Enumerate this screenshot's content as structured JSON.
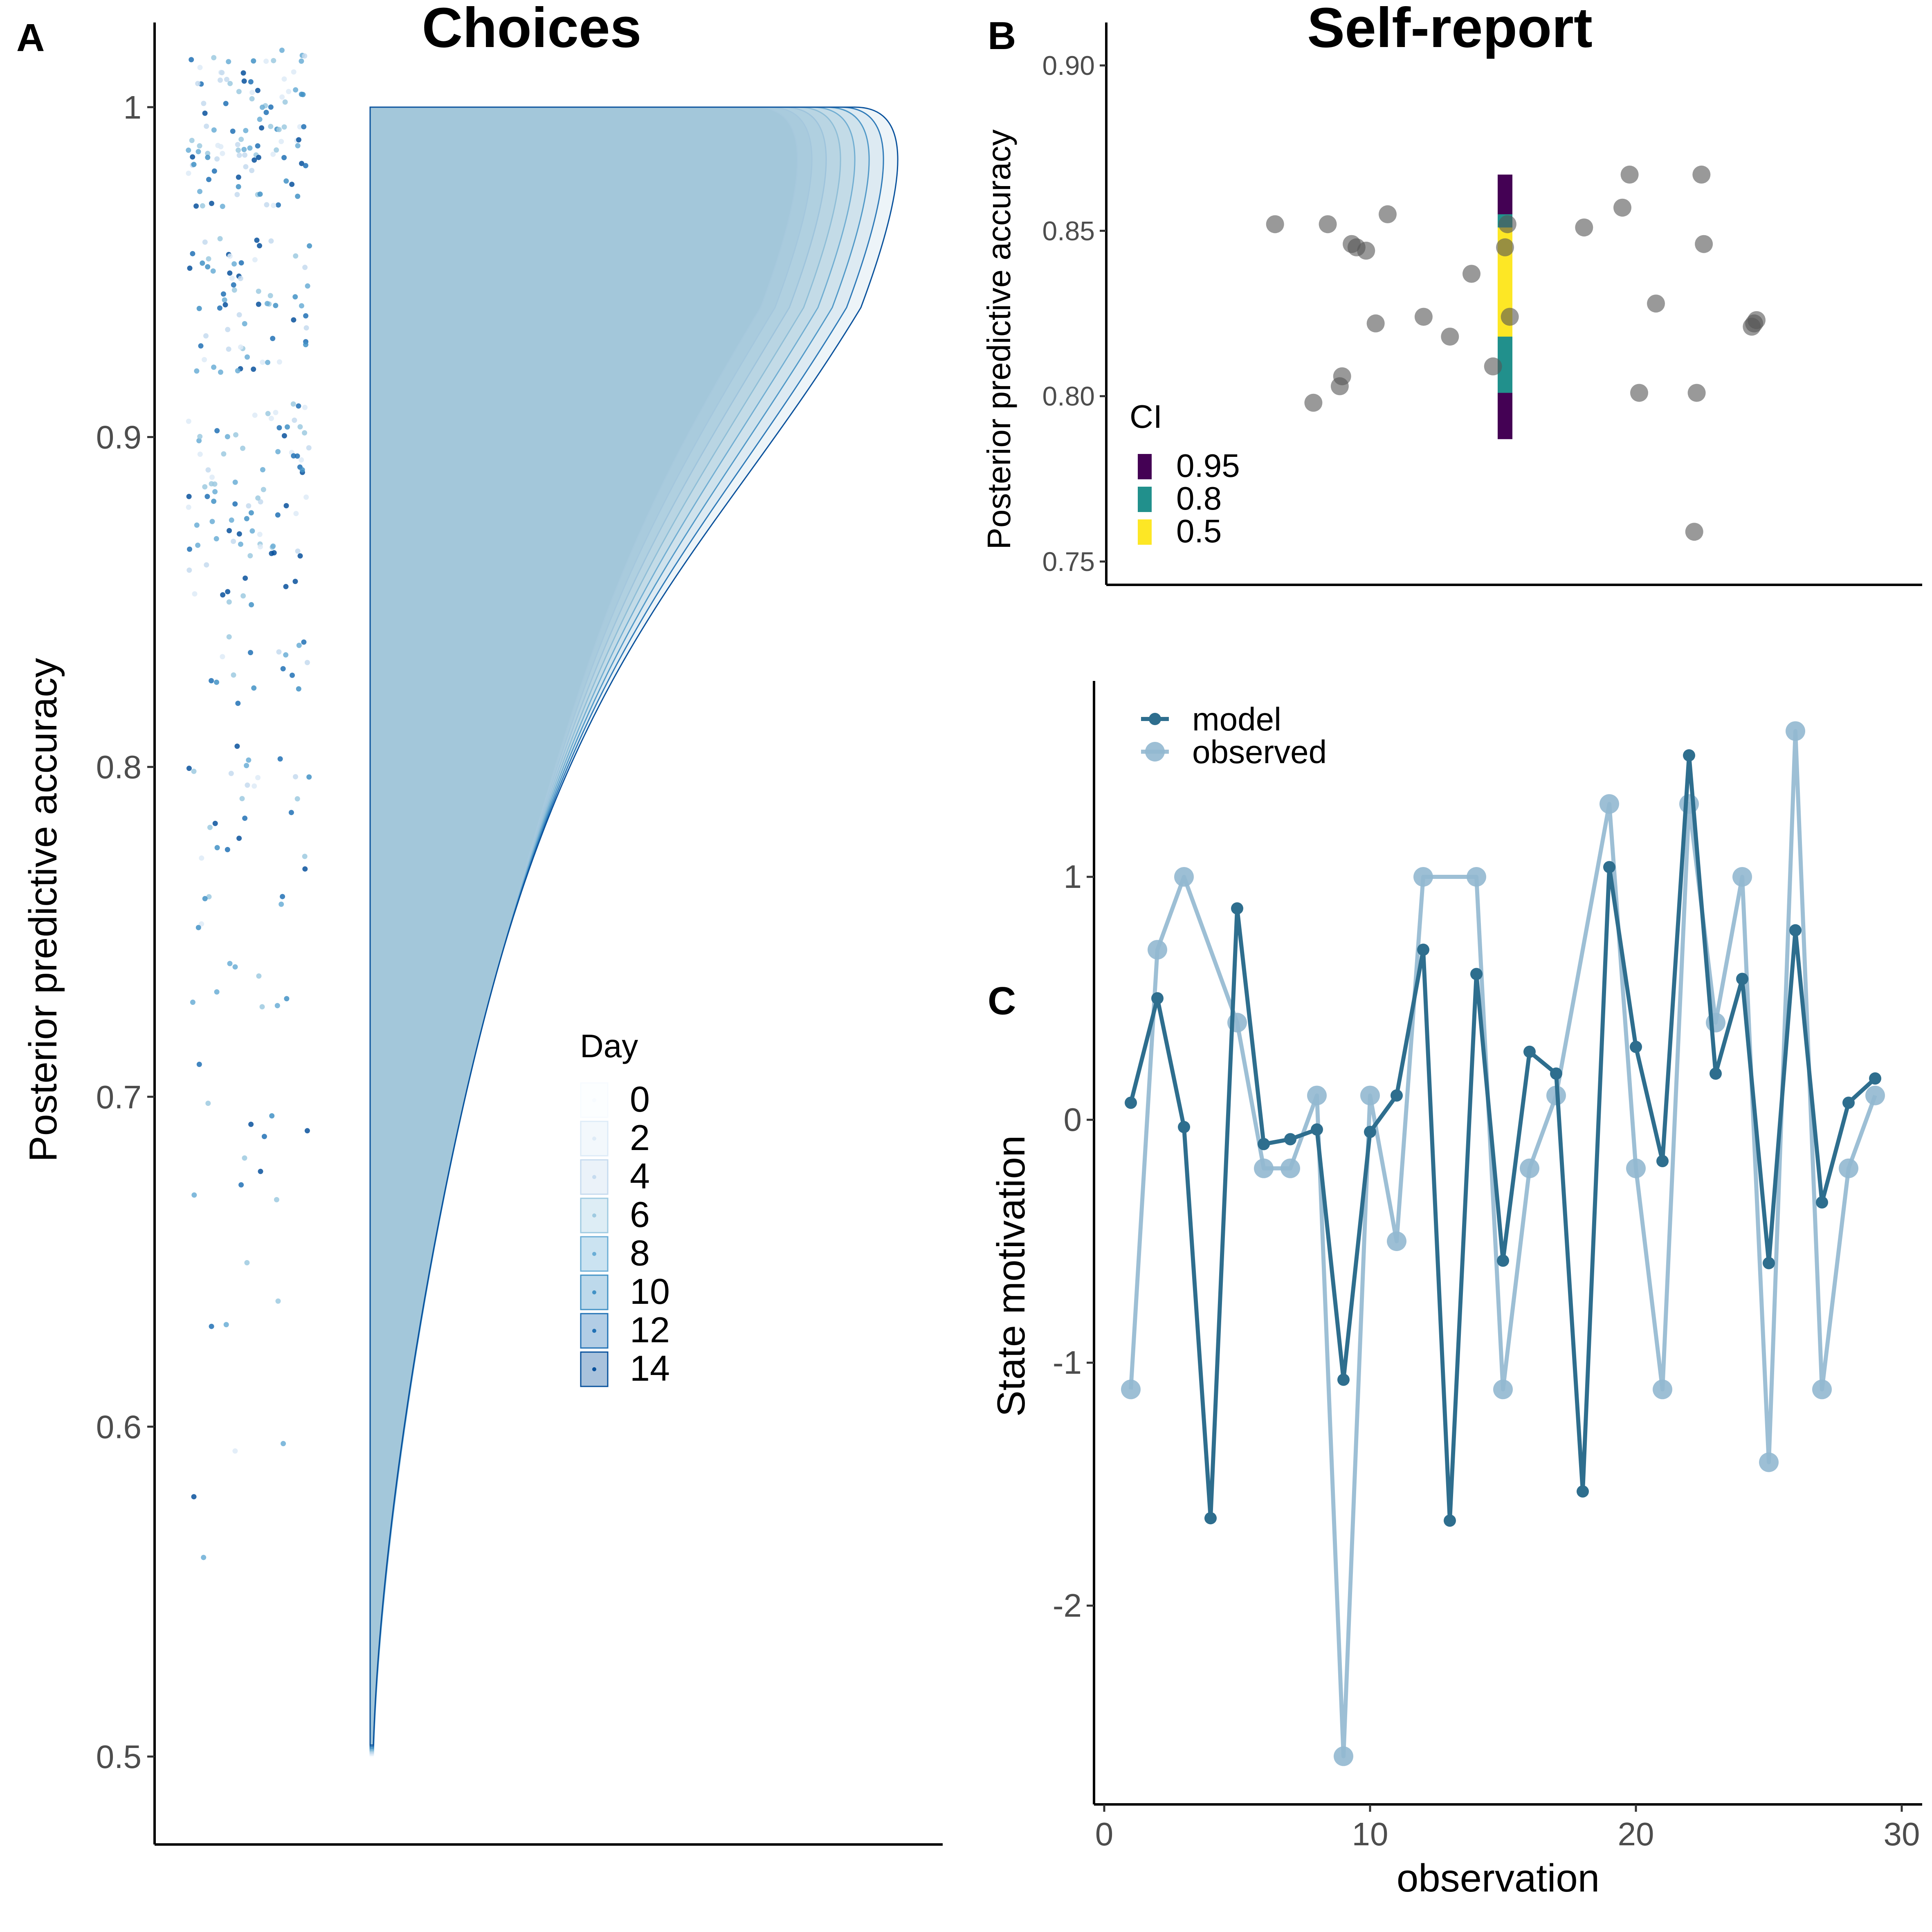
{
  "chart_data": [
    {
      "panel": "A",
      "type": "density+jitter",
      "title": "Choices",
      "ylabel": "Posterior predictive accuracy",
      "xlabel": "",
      "ylim": [
        0.48,
        1.02
      ],
      "yticks": [
        0.5,
        0.6,
        0.7,
        0.8,
        0.9,
        1.0
      ],
      "ytick_labels": [
        "0.5",
        "0.6",
        "0.7",
        "0.8",
        "0.9",
        "1"
      ],
      "legend": {
        "title": "Day",
        "placement": "inside-right",
        "entries": [
          "0",
          "2",
          "4",
          "6",
          "8",
          "10",
          "12",
          "14"
        ],
        "colors": [
          "#f7fbff",
          "#deebf7",
          "#c6dbef",
          "#9ecae1",
          "#6baed6",
          "#4292c6",
          "#2171b5",
          "#08519c"
        ]
      },
      "accuracy_levels": [
        1.0,
        0.98,
        0.95,
        0.93,
        0.9,
        0.88,
        0.86,
        0.83,
        0.8,
        0.78,
        0.75,
        0.73,
        0.7,
        0.68,
        0.66,
        0.63,
        0.6,
        0.57
      ],
      "density_peak_width": [
        0.3,
        0.31,
        0.32,
        0.33,
        0.34,
        0.35,
        0.36,
        0.37
      ],
      "grid": false
    },
    {
      "panel": "B",
      "type": "scatter+interval",
      "title": "Self-report",
      "ylabel": "Posterior predictive accuracy",
      "xlabel": "",
      "ylim": [
        0.743,
        0.907
      ],
      "yticks": [
        0.75,
        0.8,
        0.85,
        0.9
      ],
      "ytick_labels": [
        "0.75",
        "0.80",
        "0.85",
        "0.90"
      ],
      "points": [
        [
          -0.96,
          0.852
        ],
        [
          -0.74,
          0.852
        ],
        [
          -0.64,
          0.846
        ],
        [
          -0.62,
          0.845
        ],
        [
          -0.58,
          0.844
        ],
        [
          -0.49,
          0.855
        ],
        [
          -0.54,
          0.822
        ],
        [
          -0.8,
          0.798
        ],
        [
          -0.68,
          0.806
        ],
        [
          -0.69,
          0.803
        ],
        [
          -0.34,
          0.824
        ],
        [
          -0.23,
          0.818
        ],
        [
          -0.14,
          0.837
        ],
        [
          -0.05,
          0.809
        ],
        [
          0.01,
          0.852
        ],
        [
          0.0,
          0.845
        ],
        [
          0.02,
          0.824
        ],
        [
          0.33,
          0.851
        ],
        [
          0.49,
          0.857
        ],
        [
          0.52,
          0.867
        ],
        [
          0.82,
          0.867
        ],
        [
          0.83,
          0.846
        ],
        [
          0.63,
          0.828
        ],
        [
          0.56,
          0.801
        ],
        [
          0.8,
          0.801
        ],
        [
          0.79,
          0.759
        ],
        [
          1.03,
          0.821
        ],
        [
          1.04,
          0.822
        ],
        [
          1.05,
          0.823
        ]
      ],
      "intervals": [
        {
          "ci": "0.95",
          "low": 0.787,
          "high": 0.867,
          "color": "#440154"
        },
        {
          "ci": "0.8",
          "low": 0.801,
          "high": 0.855,
          "color": "#21908c"
        },
        {
          "ci": "0.5",
          "low": 0.818,
          "high": 0.851,
          "color": "#fde725"
        }
      ],
      "legend": {
        "title": "CI",
        "placement": "inside-left",
        "entries": [
          "0.95",
          "0.8",
          "0.5"
        ]
      },
      "grid": false
    },
    {
      "panel": "C",
      "type": "line",
      "title": "",
      "xlabel": "observation",
      "ylabel": "State motivation",
      "xlim": [
        -0.5,
        30.3
      ],
      "ylim": [
        -2.82,
        1.8
      ],
      "xticks": [
        0,
        10,
        20,
        30
      ],
      "xtick_labels": [
        "0",
        "10",
        "20",
        "30"
      ],
      "yticks": [
        -2,
        -1,
        0,
        1
      ],
      "ytick_labels": [
        "-2",
        "-1",
        "0",
        "1"
      ],
      "legend": {
        "placement": "top-left",
        "entries": [
          "model",
          "observed"
        ]
      },
      "x": [
        1,
        2,
        3,
        4,
        5,
        6,
        7,
        8,
        9,
        10,
        11,
        12,
        13,
        14,
        15,
        16,
        17,
        18,
        19,
        20,
        21,
        22,
        23,
        24,
        25,
        26,
        27,
        28,
        29
      ],
      "series": [
        {
          "name": "model",
          "color": "#2e6e8e",
          "values": [
            0.07,
            0.5,
            -0.03,
            null,
            0.87,
            -0.1,
            -0.08,
            -0.04,
            -1.07,
            -0.05,
            0.1,
            0.7,
            -1.65,
            0.6,
            -0.58,
            0.28,
            0.19,
            -1.53,
            1.04,
            0.3,
            -0.17,
            1.5,
            0.19,
            0.58,
            -0.59,
            0.78,
            -0.34,
            0.07,
            0.17
          ],
          "extra_points": [
            [
              4,
              -1.64
            ]
          ]
        },
        {
          "name": "observed",
          "color": "#92b8d0",
          "values": [
            -1.11,
            0.7,
            1.0,
            null,
            0.4,
            -0.2,
            -0.2,
            0.1,
            -2.62,
            0.1,
            -0.5,
            1.0,
            null,
            1.0,
            -1.11,
            -0.2,
            0.1,
            null,
            1.3,
            -0.2,
            -1.11,
            1.3,
            0.4,
            1.0,
            -1.41,
            1.6,
            -1.11,
            -0.2,
            0.1
          ]
        }
      ],
      "grid": false
    }
  ],
  "panel_labels": {
    "a": "A",
    "b": "B",
    "c": "C"
  }
}
